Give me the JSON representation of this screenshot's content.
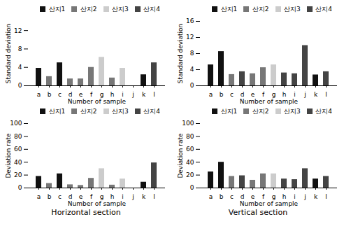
{
  "chart_data": [
    {
      "type": "bar",
      "categories": [
        "a",
        "b",
        "c",
        "d",
        "e",
        "f",
        "g",
        "h",
        "i",
        "j",
        "k",
        "l"
      ],
      "series": [
        {
          "name": "산지1",
          "color": "#111111",
          "values": [
            3.8,
            null,
            5.0,
            null,
            null,
            null,
            null,
            null,
            null,
            null,
            2.4,
            null
          ]
        },
        {
          "name": "산지2",
          "color": "#777777",
          "values": [
            null,
            2.0,
            null,
            1.5,
            1.5,
            4.0,
            null,
            1.7,
            null,
            0,
            null,
            null
          ]
        },
        {
          "name": "산지3",
          "color": "#cccccc",
          "values": [
            null,
            null,
            null,
            null,
            null,
            null,
            6.2,
            null,
            3.8,
            null,
            null,
            null
          ]
        },
        {
          "name": "산지4",
          "color": "#444444",
          "values": [
            null,
            null,
            null,
            null,
            null,
            null,
            null,
            null,
            null,
            null,
            null,
            5.0
          ]
        }
      ],
      "stacked": true,
      "legend": "upper right",
      "grid": false,
      "xlabel": "Number of sample",
      "ylabel": "Standard deviation",
      "ylim": [
        0,
        14
      ],
      "yticks": [
        0,
        4,
        8,
        12
      ]
    },
    {
      "type": "bar",
      "categories": [
        "a",
        "b",
        "c",
        "d",
        "e",
        "f",
        "g",
        "h",
        "i",
        "j",
        "k",
        "l"
      ],
      "series": [
        {
          "name": "산지1",
          "color": "#111111",
          "values": [
            5.2,
            8.5,
            null,
            null,
            null,
            null,
            null,
            null,
            null,
            null,
            2.7,
            null
          ]
        },
        {
          "name": "산지2",
          "color": "#777777",
          "values": [
            null,
            null,
            2.8,
            null,
            3.0,
            4.5,
            null,
            null,
            null,
            null,
            null,
            null
          ]
        },
        {
          "name": "산지3",
          "color": "#cccccc",
          "values": [
            null,
            null,
            null,
            null,
            null,
            null,
            5.2,
            null,
            null,
            null,
            null,
            null
          ]
        },
        {
          "name": "산지4",
          "color": "#444444",
          "values": [
            null,
            null,
            null,
            3.5,
            null,
            null,
            null,
            3.2,
            3.0,
            10.0,
            null,
            3.5
          ]
        }
      ],
      "stacked": true,
      "legend": "upper right",
      "grid": false,
      "xlabel": "Number of sample",
      "ylabel": "Standard deviation",
      "ylim": [
        0,
        16
      ],
      "yticks": [
        0,
        4,
        8,
        12,
        16
      ]
    },
    {
      "type": "bar",
      "title": "Horizontal section",
      "categories": [
        "a",
        "b",
        "c",
        "d",
        "e",
        "f",
        "g",
        "h",
        "i",
        "j",
        "k",
        "l"
      ],
      "series": [
        {
          "name": "산지1",
          "color": "#111111",
          "values": [
            18.0,
            null,
            22.0,
            null,
            null,
            null,
            null,
            null,
            null,
            null,
            9.0,
            null
          ]
        },
        {
          "name": "산지2",
          "color": "#777777",
          "values": [
            null,
            7.0,
            null,
            5.0,
            4.0,
            15.0,
            null,
            4.5,
            null,
            0,
            null,
            null
          ]
        },
        {
          "name": "산지3",
          "color": "#cccccc",
          "values": [
            null,
            null,
            null,
            null,
            null,
            null,
            30.0,
            null,
            14.0,
            null,
            null,
            null
          ]
        },
        {
          "name": "산지4",
          "color": "#444444",
          "values": [
            null,
            null,
            null,
            null,
            null,
            null,
            null,
            null,
            null,
            null,
            null,
            39.0
          ]
        }
      ],
      "stacked": true,
      "legend": "upper right",
      "grid": false,
      "xlabel": "Number of sample",
      "ylabel": "Deviation rate",
      "ylim": [
        0,
        100
      ],
      "yticks": [
        0,
        20,
        40,
        60,
        80,
        100
      ]
    },
    {
      "type": "bar",
      "title": "Vertical section",
      "categories": [
        "a",
        "b",
        "c",
        "d",
        "e",
        "f",
        "g",
        "h",
        "i",
        "j",
        "k",
        "l"
      ],
      "series": [
        {
          "name": "산지1",
          "color": "#111111",
          "values": [
            25.0,
            40.0,
            null,
            null,
            null,
            null,
            null,
            null,
            null,
            null,
            14.0,
            null
          ]
        },
        {
          "name": "산지2",
          "color": "#777777",
          "values": [
            null,
            null,
            18.0,
            null,
            12.0,
            22.0,
            null,
            null,
            null,
            null,
            null,
            null
          ]
        },
        {
          "name": "산지3",
          "color": "#cccccc",
          "values": [
            null,
            null,
            null,
            null,
            null,
            null,
            22.0,
            null,
            null,
            null,
            null,
            null
          ]
        },
        {
          "name": "산지4",
          "color": "#444444",
          "values": [
            null,
            null,
            null,
            19.0,
            null,
            null,
            null,
            14.0,
            13.0,
            30.0,
            null,
            18.0
          ]
        }
      ],
      "stacked": true,
      "legend": "upper right",
      "grid": false,
      "xlabel": "Number of sample",
      "ylabel": "Deviation rate",
      "ylim": [
        0,
        100
      ],
      "yticks": [
        0,
        20,
        40,
        60,
        80,
        100
      ]
    }
  ]
}
